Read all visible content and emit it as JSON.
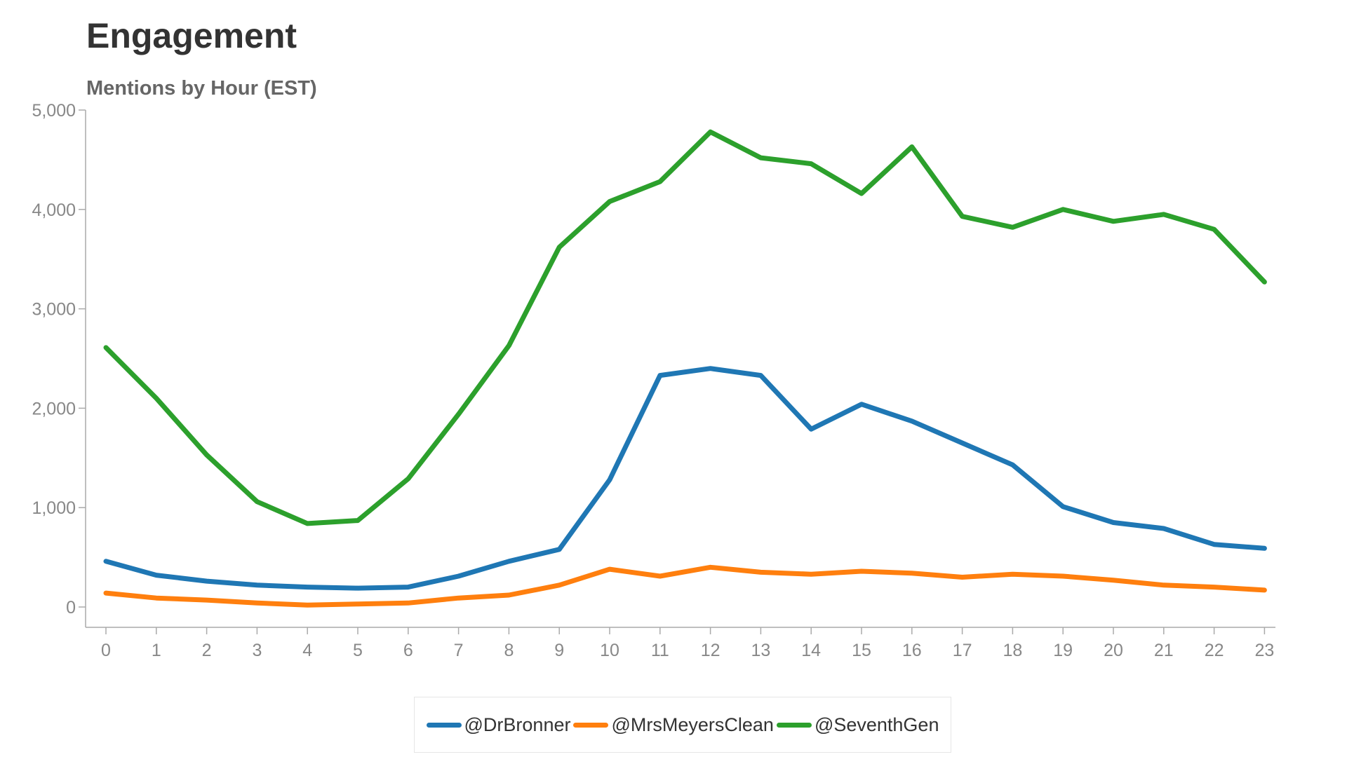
{
  "header": {
    "title": "Engagement"
  },
  "chart_data": {
    "type": "line",
    "subtitle": "Mentions by Hour (EST)",
    "x": [
      0,
      1,
      2,
      3,
      4,
      5,
      6,
      7,
      8,
      9,
      10,
      11,
      12,
      13,
      14,
      15,
      16,
      17,
      18,
      19,
      20,
      21,
      22,
      23
    ],
    "x_tick_labels": [
      "0",
      "1",
      "2",
      "3",
      "4",
      "5",
      "6",
      "7",
      "8",
      "9",
      "10",
      "11",
      "12",
      "13",
      "14",
      "15",
      "16",
      "17",
      "18",
      "19",
      "20",
      "21",
      "22",
      "23"
    ],
    "y_tick_values": [
      0,
      1000,
      2000,
      3000,
      4000,
      5000
    ],
    "y_tick_labels": [
      "0",
      "1,000",
      "2,000",
      "3,000",
      "4,000",
      "5,000"
    ],
    "ylim": [
      0,
      5000
    ],
    "grid": false,
    "legend_position": "bottom-center",
    "series": [
      {
        "name": "@DrBronner",
        "color": "#1f77b4",
        "values": [
          460,
          320,
          260,
          220,
          200,
          190,
          200,
          310,
          460,
          580,
          1280,
          2330,
          2400,
          2330,
          1790,
          2040,
          1870,
          1650,
          1430,
          1010,
          850,
          790,
          630,
          590
        ]
      },
      {
        "name": "@MrsMeyersClean",
        "color": "#ff7f0e",
        "values": [
          140,
          90,
          70,
          40,
          20,
          30,
          40,
          90,
          120,
          220,
          380,
          310,
          400,
          350,
          330,
          360,
          340,
          300,
          330,
          310,
          270,
          220,
          200,
          170
        ]
      },
      {
        "name": "@SeventhGen",
        "color": "#2ca02c",
        "values": [
          2610,
          2100,
          1530,
          1060,
          840,
          870,
          1290,
          1940,
          2630,
          3620,
          4080,
          4280,
          4780,
          4520,
          4460,
          4160,
          4630,
          3930,
          3820,
          4000,
          3880,
          3950,
          3800,
          3270
        ]
      }
    ]
  }
}
